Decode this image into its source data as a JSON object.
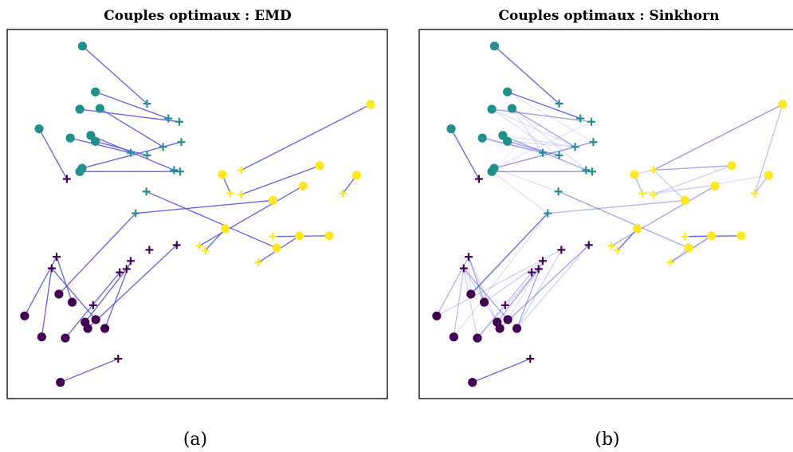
{
  "figure": {
    "panels": [
      {
        "title": "Couples optimaux : EMD",
        "caption": "(a)"
      },
      {
        "title": "Couples optimaux : Sinkhorn",
        "caption": "(b)"
      }
    ]
  },
  "colors": {
    "class_0": "#440154",
    "class_1": "#21908c",
    "class_2": "#fde725",
    "link": "#5a5ae6"
  },
  "chart_data": [
    {
      "type": "scatter",
      "title": "Couples optimaux : EMD",
      "xlim": [
        0,
        100
      ],
      "ylim": [
        0,
        100
      ],
      "grid": false,
      "sources": [
        {
          "x": 19.8,
          "y": 95.5,
          "c": 1
        },
        {
          "x": 23.2,
          "y": 83.1,
          "c": 1
        },
        {
          "x": 19.1,
          "y": 78.4,
          "c": 1
        },
        {
          "x": 24.4,
          "y": 78.6,
          "c": 1
        },
        {
          "x": 8.4,
          "y": 73.1,
          "c": 1
        },
        {
          "x": 16.6,
          "y": 70.6,
          "c": 1
        },
        {
          "x": 22.0,
          "y": 71.3,
          "c": 1
        },
        {
          "x": 23.2,
          "y": 69.7,
          "c": 1
        },
        {
          "x": 19.7,
          "y": 62.4,
          "c": 1
        },
        {
          "x": 19.1,
          "y": 61.5,
          "c": 1
        },
        {
          "x": 95.6,
          "y": 79.7,
          "c": 2
        },
        {
          "x": 82.2,
          "y": 63.1,
          "c": 2
        },
        {
          "x": 91.9,
          "y": 60.5,
          "c": 2
        },
        {
          "x": 56.6,
          "y": 60.7,
          "c": 2
        },
        {
          "x": 77.8,
          "y": 57.6,
          "c": 2
        },
        {
          "x": 69.9,
          "y": 53.7,
          "c": 2
        },
        {
          "x": 57.4,
          "y": 46.0,
          "c": 2
        },
        {
          "x": 76.9,
          "y": 44.1,
          "c": 2
        },
        {
          "x": 84.7,
          "y": 44.1,
          "c": 2
        },
        {
          "x": 70.9,
          "y": 40.8,
          "c": 2
        },
        {
          "x": 13.6,
          "y": 28.3,
          "c": 0
        },
        {
          "x": 17.1,
          "y": 26.1,
          "c": 0
        },
        {
          "x": 4.6,
          "y": 22.4,
          "c": 0
        },
        {
          "x": 23.3,
          "y": 21.4,
          "c": 0
        },
        {
          "x": 20.5,
          "y": 20.7,
          "c": 0
        },
        {
          "x": 21.2,
          "y": 19.0,
          "c": 0
        },
        {
          "x": 25.7,
          "y": 19.0,
          "c": 0
        },
        {
          "x": 9.1,
          "y": 16.7,
          "c": 0
        },
        {
          "x": 15.3,
          "y": 16.4,
          "c": 0
        },
        {
          "x": 14.0,
          "y": 4.4,
          "c": 0
        }
      ],
      "targets": [
        {
          "x": 36.8,
          "y": 79.9,
          "c": 1
        },
        {
          "x": 42.4,
          "y": 75.9,
          "c": 1
        },
        {
          "x": 45.3,
          "y": 75.0,
          "c": 1
        },
        {
          "x": 45.8,
          "y": 69.5,
          "c": 1
        },
        {
          "x": 41.0,
          "y": 68.2,
          "c": 1
        },
        {
          "x": 32.5,
          "y": 66.6,
          "c": 1
        },
        {
          "x": 36.8,
          "y": 65.9,
          "c": 1
        },
        {
          "x": 43.9,
          "y": 61.9,
          "c": 1
        },
        {
          "x": 45.5,
          "y": 61.5,
          "c": 1
        },
        {
          "x": 36.6,
          "y": 56.1,
          "c": 1
        },
        {
          "x": 33.8,
          "y": 50.2,
          "c": 1
        },
        {
          "x": 61.6,
          "y": 61.9,
          "c": 2
        },
        {
          "x": 58.7,
          "y": 55.6,
          "c": 2
        },
        {
          "x": 61.6,
          "y": 55.3,
          "c": 2
        },
        {
          "x": 88.3,
          "y": 55.6,
          "c": 2
        },
        {
          "x": 69.9,
          "y": 43.9,
          "c": 2
        },
        {
          "x": 50.6,
          "y": 41.4,
          "c": 2
        },
        {
          "x": 52.1,
          "y": 40.1,
          "c": 2
        },
        {
          "x": 66.1,
          "y": 36.9,
          "c": 2
        },
        {
          "x": 15.7,
          "y": 59.5,
          "c": 0
        },
        {
          "x": 44.6,
          "y": 41.6,
          "c": 0
        },
        {
          "x": 37.4,
          "y": 40.3,
          "c": 0
        },
        {
          "x": 13.0,
          "y": 38.4,
          "c": 0
        },
        {
          "x": 32.5,
          "y": 37.3,
          "c": 0
        },
        {
          "x": 11.7,
          "y": 35.3,
          "c": 0
        },
        {
          "x": 31.4,
          "y": 35.1,
          "c": 0
        },
        {
          "x": 29.6,
          "y": 34.2,
          "c": 0
        },
        {
          "x": 22.6,
          "y": 25.3,
          "c": 0
        },
        {
          "x": 29.2,
          "y": 10.8,
          "c": 0
        }
      ],
      "pairs": [
        [
          0,
          0,
          1.0
        ],
        [
          1,
          1,
          1.0
        ],
        [
          2,
          2,
          1.0
        ],
        [
          3,
          4,
          1.0
        ],
        [
          4,
          19,
          1.0
        ],
        [
          5,
          5,
          1.0
        ],
        [
          6,
          7,
          1.0
        ],
        [
          7,
          6,
          1.0
        ],
        [
          8,
          3,
          1.0
        ],
        [
          9,
          8,
          1.0
        ],
        [
          10,
          11,
          1.0
        ],
        [
          11,
          13,
          1.0
        ],
        [
          12,
          14,
          1.0
        ],
        [
          13,
          12,
          1.0
        ],
        [
          14,
          16,
          1.0
        ],
        [
          15,
          10,
          1.0
        ],
        [
          16,
          17,
          1.0
        ],
        [
          17,
          18,
          1.0
        ],
        [
          18,
          15,
          1.0
        ],
        [
          19,
          9,
          1.0
        ],
        [
          20,
          10,
          1.0
        ],
        [
          21,
          22,
          1.0
        ],
        [
          22,
          22,
          1.0
        ],
        [
          23,
          24,
          1.0
        ],
        [
          24,
          25,
          1.0
        ],
        [
          25,
          20,
          1.0
        ],
        [
          26,
          23,
          1.0
        ],
        [
          27,
          24,
          1.0
        ],
        [
          28,
          26,
          1.0
        ],
        [
          29,
          28,
          1.0
        ]
      ]
    },
    {
      "type": "scatter",
      "title": "Couples optimaux : Sinkhorn",
      "xlim": [
        0,
        100
      ],
      "ylim": [
        0,
        100
      ],
      "grid": false,
      "sources_same_as_panel": 0,
      "targets_same_as_panel": 0,
      "pairs": [
        [
          0,
          0,
          1.0
        ],
        [
          1,
          1,
          1.0
        ],
        [
          2,
          2,
          0.6
        ],
        [
          3,
          4,
          0.6
        ],
        [
          4,
          19,
          1.0
        ],
        [
          5,
          5,
          0.6
        ],
        [
          6,
          7,
          0.6
        ],
        [
          7,
          6,
          0.6
        ],
        [
          8,
          3,
          0.7
        ],
        [
          9,
          8,
          0.7
        ],
        [
          2,
          6,
          0.2
        ],
        [
          2,
          4,
          0.2
        ],
        [
          3,
          5,
          0.2
        ],
        [
          3,
          7,
          0.2
        ],
        [
          5,
          6,
          0.2
        ],
        [
          6,
          4,
          0.2
        ],
        [
          7,
          4,
          0.2
        ],
        [
          8,
          9,
          0.2
        ],
        [
          8,
          2,
          0.15
        ],
        [
          9,
          10,
          0.2
        ],
        [
          9,
          0,
          0.12
        ],
        [
          1,
          3,
          0.15
        ],
        [
          10,
          11,
          0.7
        ],
        [
          10,
          14,
          0.4
        ],
        [
          11,
          11,
          0.6
        ],
        [
          11,
          13,
          0.3
        ],
        [
          12,
          14,
          0.5
        ],
        [
          12,
          13,
          0.2
        ],
        [
          13,
          12,
          0.5
        ],
        [
          13,
          11,
          0.3
        ],
        [
          14,
          16,
          0.6
        ],
        [
          15,
          10,
          0.5
        ],
        [
          15,
          11,
          0.3
        ],
        [
          16,
          17,
          1.0
        ],
        [
          17,
          18,
          0.7
        ],
        [
          18,
          15,
          1.0
        ],
        [
          19,
          9,
          0.6
        ],
        [
          14,
          12,
          0.2
        ],
        [
          17,
          15,
          0.3
        ],
        [
          19,
          18,
          0.3
        ],
        [
          20,
          10,
          1.0
        ],
        [
          21,
          22,
          0.6
        ],
        [
          21,
          23,
          0.3
        ],
        [
          22,
          22,
          0.5
        ],
        [
          22,
          21,
          0.3
        ],
        [
          23,
          24,
          0.6
        ],
        [
          24,
          25,
          0.6
        ],
        [
          24,
          24,
          0.3
        ],
        [
          25,
          20,
          0.6
        ],
        [
          25,
          22,
          0.3
        ],
        [
          26,
          23,
          0.6
        ],
        [
          26,
          21,
          0.3
        ],
        [
          27,
          24,
          0.4
        ],
        [
          27,
          10,
          0.2
        ],
        [
          28,
          26,
          0.4
        ],
        [
          28,
          25,
          0.3
        ],
        [
          28,
          24,
          0.3
        ],
        [
          29,
          28,
          1.0
        ],
        [
          20,
          22,
          0.2
        ],
        [
          23,
          25,
          0.2
        ],
        [
          26,
          20,
          0.3
        ]
      ]
    }
  ]
}
